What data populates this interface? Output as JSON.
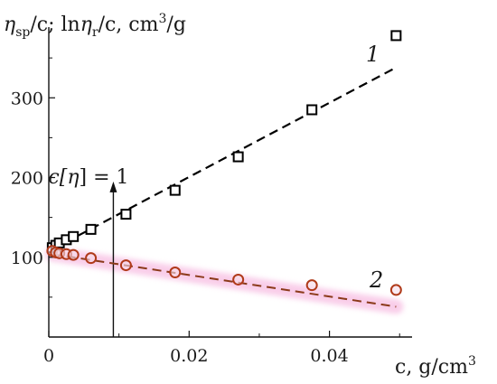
{
  "chart_data": {
    "type": "scatter",
    "title": "",
    "ylabel": {
      "before": "η",
      "sub1": "sp",
      "mid": "/c; ln",
      "eta": "η",
      "sub2": "r",
      "after": "/c, cm",
      "sup": "3",
      "end": "/g"
    },
    "xlabel": {
      "before": "c, g/cm",
      "sup": "3"
    },
    "xlim": [
      0,
      0.051
    ],
    "ylim": [
      0,
      400
    ],
    "xticks": [
      0,
      0.02,
      0.04
    ],
    "xtick_labels": [
      "0",
      "0.02",
      "0.04"
    ],
    "yticks": [
      100,
      200,
      300
    ],
    "ytick_labels": [
      "100",
      "200",
      "300"
    ],
    "grid": false,
    "series": [
      {
        "label": "1",
        "marker": "square",
        "color": "#000000",
        "x": [
          0.0005,
          0.001,
          0.0015,
          0.0025,
          0.0035,
          0.006,
          0.011,
          0.018,
          0.027,
          0.0375,
          0.0495
        ],
        "y": [
          112,
          115,
          118,
          122,
          126,
          135,
          154,
          184,
          226,
          285,
          378
        ],
        "fit": {
          "x": [
            0.0005,
            0.0495
          ],
          "y": [
            110,
            338
          ],
          "color": "#000000"
        }
      },
      {
        "label": "2",
        "marker": "circle",
        "color": "#b03a1a",
        "x": [
          0.0005,
          0.001,
          0.0015,
          0.0025,
          0.0035,
          0.006,
          0.011,
          0.018,
          0.027,
          0.0375,
          0.0495
        ],
        "y": [
          108,
          106,
          105,
          104,
          103,
          99,
          90,
          81,
          72,
          65,
          59
        ],
        "fit": {
          "x": [
            0.0005,
            0.0495
          ],
          "y": [
            104,
            38
          ],
          "color": "#8b3a1a"
        }
      }
    ],
    "annotation": {
      "text_before": "c[",
      "eta": "η",
      "text_after": "] = 1",
      "x": 0.0092,
      "y_from": 0,
      "y_to": 195
    }
  }
}
